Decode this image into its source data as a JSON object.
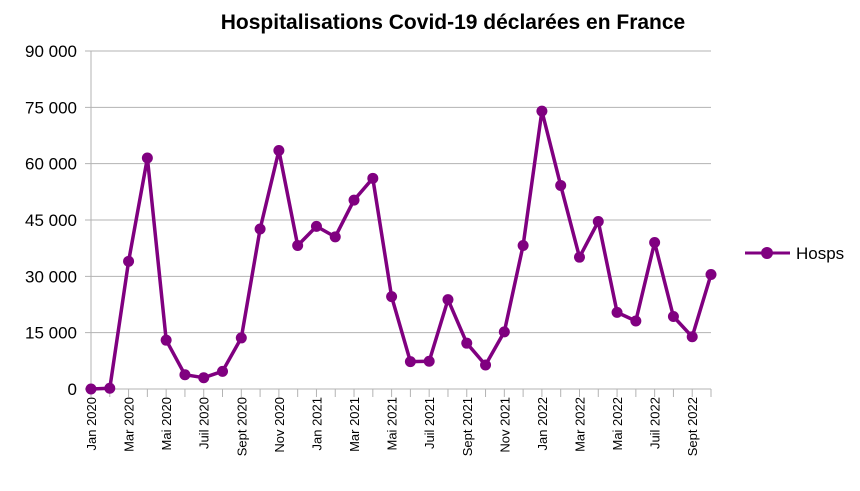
{
  "chart_data": {
    "type": "line",
    "title": "Hospitalisations Covid-19 déclarées en France",
    "xlabel": "",
    "ylabel": "",
    "ylim": [
      0,
      90000
    ],
    "yticks": [
      0,
      15000,
      30000,
      45000,
      60000,
      75000,
      90000
    ],
    "ytick_labels": [
      "0",
      "15 000",
      "30 000",
      "45 000",
      "60 000",
      "75 000",
      "90 000"
    ],
    "grid": true,
    "legend": "right",
    "color": "#800080",
    "x": [
      "2020-01",
      "2020-02",
      "2020-03",
      "2020-04",
      "2020-05",
      "2020-06",
      "2020-07",
      "2020-08",
      "2020-09",
      "2020-10",
      "2020-11",
      "2020-12",
      "2021-01",
      "2021-02",
      "2021-03",
      "2021-04",
      "2021-05",
      "2021-06",
      "2021-07",
      "2021-08",
      "2021-09",
      "2021-10",
      "2021-11",
      "2021-12",
      "2022-01",
      "2022-02",
      "2022-03",
      "2022-04",
      "2022-05",
      "2022-06",
      "2022-07",
      "2022-08",
      "2022-09",
      "2022-10"
    ],
    "tick_labels": [
      "Jan 2020",
      "Mar 2020",
      "Mai 2020",
      "Juil 2020",
      "Sept 2020",
      "Nov 2020",
      "Jan 2021",
      "Mar 2021",
      "Mai 2021",
      "Juil 2021",
      "Sept 2021",
      "Nov 2021",
      "Jan 2022",
      "Mar 2022",
      "Mai 2022",
      "Juil 2022",
      "Sept 2022"
    ],
    "series": [
      {
        "name": "Hosps",
        "values": [
          0,
          200,
          34000,
          61500,
          13000,
          3800,
          3000,
          4700,
          13600,
          42600,
          63500,
          38200,
          43300,
          40500,
          50300,
          56100,
          24600,
          7300,
          7400,
          23800,
          12200,
          6400,
          15200,
          38200,
          74000,
          54200,
          35100,
          44600,
          20400,
          18100,
          39000,
          19300,
          13900,
          30500
        ]
      }
    ]
  }
}
